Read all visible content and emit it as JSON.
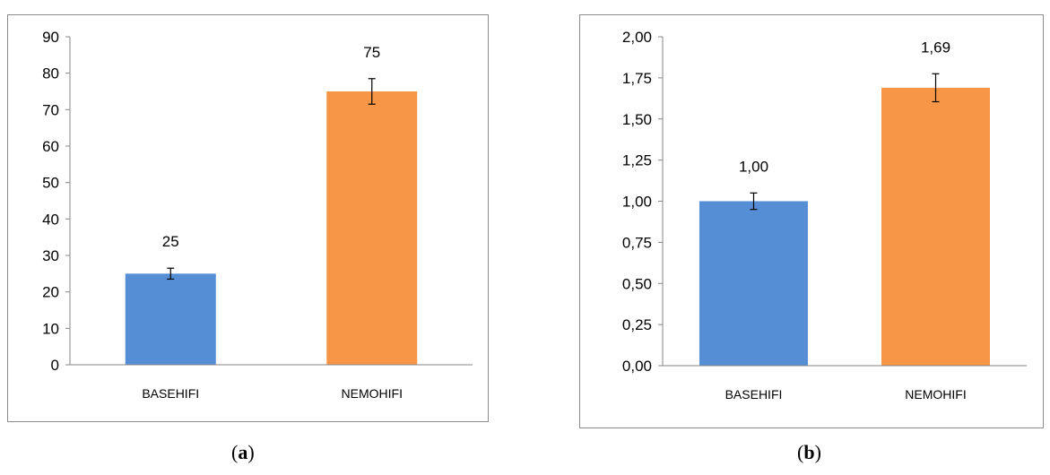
{
  "chart_data": [
    {
      "type": "bar",
      "categories": [
        "BASEHIFI",
        "NEMOHIFI"
      ],
      "values": [
        25,
        75
      ],
      "value_labels": [
        "25",
        "75"
      ],
      "error": [
        1.5,
        3.5
      ],
      "ylim": [
        0,
        90
      ],
      "yticks": [
        0,
        10,
        20,
        30,
        40,
        50,
        60,
        70,
        80,
        90
      ],
      "ytick_labels": [
        "0",
        "10",
        "20",
        "30",
        "40",
        "50",
        "60",
        "70",
        "80",
        "90"
      ],
      "colors": [
        "#558ed5",
        "#f79646"
      ],
      "grid": false,
      "title": "",
      "xlabel": "",
      "ylabel": ""
    },
    {
      "type": "bar",
      "categories": [
        "BASEHIFI",
        "NEMOHIFI"
      ],
      "values": [
        1.0,
        1.69
      ],
      "value_labels": [
        "1,00",
        "1,69"
      ],
      "error": [
        0.05,
        0.085
      ],
      "ylim": [
        0,
        2
      ],
      "yticks": [
        0,
        0.25,
        0.5,
        0.75,
        1,
        1.25,
        1.5,
        1.75,
        2
      ],
      "ytick_labels": [
        "0,00",
        "0,25",
        "0,50",
        "0,75",
        "1,00",
        "1,25",
        "1,50",
        "1,75",
        "2,00"
      ],
      "colors": [
        "#558ed5",
        "#f79646"
      ],
      "grid": false,
      "title": "",
      "xlabel": "",
      "ylabel": ""
    }
  ],
  "captions": {
    "a_open": "(",
    "a_letter": "a",
    "a_close": ")",
    "b_open": "(",
    "b_letter": "b",
    "b_close": ")"
  }
}
